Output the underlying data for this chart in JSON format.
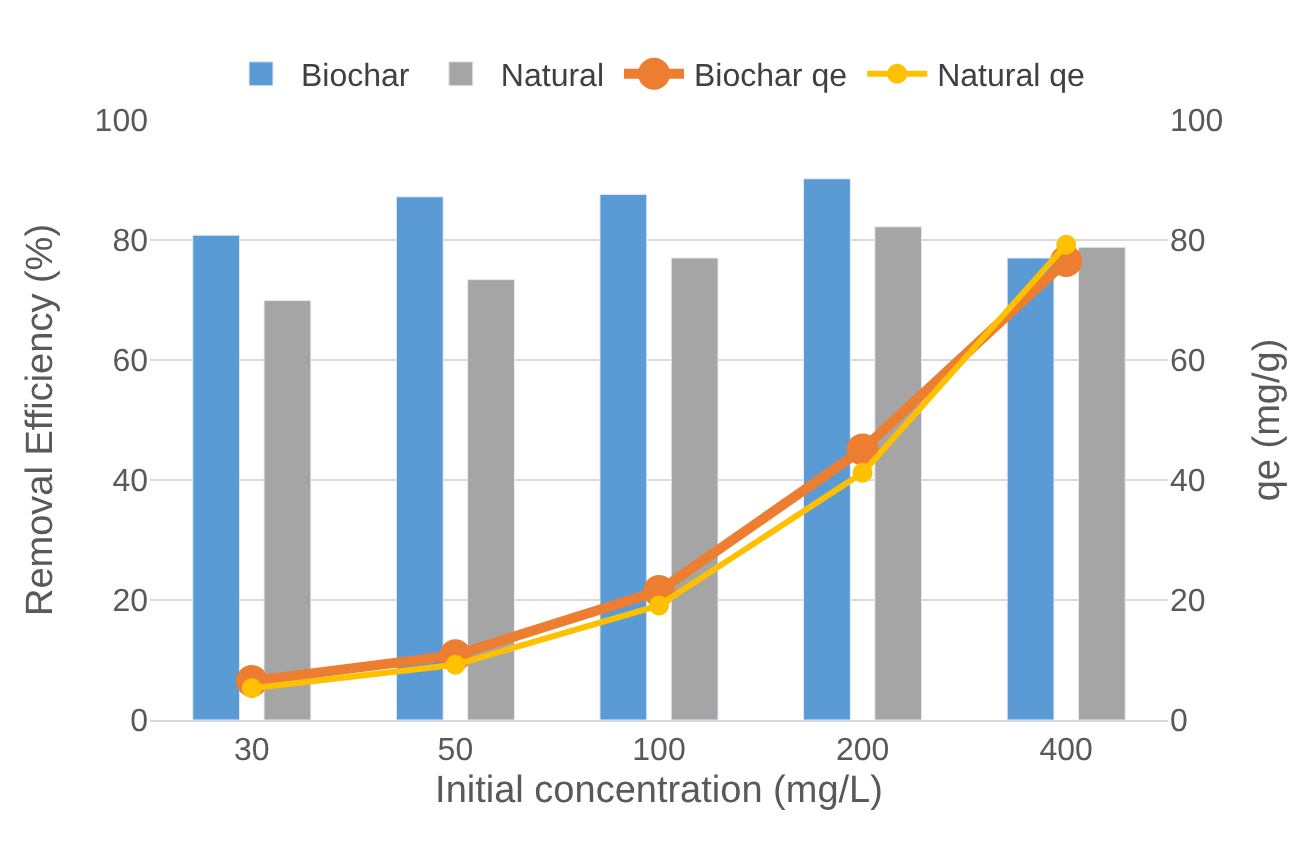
{
  "chart_data": {
    "type": "bar",
    "xlabel": "Initial concentration (mg/L)",
    "ylabel": "Removal Efficiency (%)",
    "y2label": "qe (mg/g)",
    "categories": [
      "30",
      "50",
      "100",
      "200",
      "400"
    ],
    "series": [
      {
        "name": "Biochar",
        "color": "#5b9bd5",
        "values": [
          80.8,
          87.2,
          87.6,
          90.2,
          77.0
        ]
      },
      {
        "name": "Natural",
        "color": "#a5a5a5",
        "values": [
          69.9,
          73.4,
          77.0,
          82.2,
          78.8
        ]
      },
      {
        "name": "Biochar qe",
        "type": "line",
        "axis": "y2",
        "color": "#ed7d31",
        "values": [
          6.5,
          10.8,
          21.5,
          45.1,
          76.5
        ]
      },
      {
        "name": "Natural qe",
        "type": "line",
        "axis": "y2",
        "color": "#ffc000",
        "values": [
          5.3,
          9.2,
          19.1,
          41.2,
          79.2
        ]
      }
    ],
    "ylim": [
      0,
      100
    ],
    "yticks": [
      0,
      20,
      40,
      60,
      80,
      100
    ],
    "y2lim": [
      0,
      100
    ],
    "y2ticks": [
      0,
      20,
      40,
      60,
      80,
      100
    ],
    "grid": "y",
    "legend": "top",
    "marker": "circle"
  }
}
